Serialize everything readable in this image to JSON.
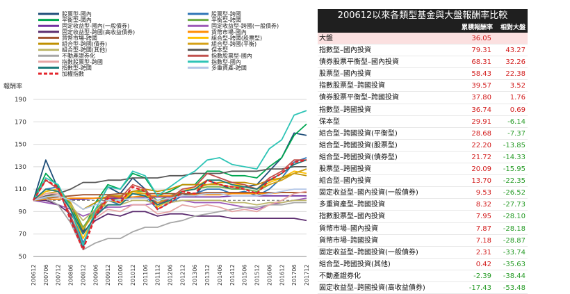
{
  "chart_data": {
    "type": "line",
    "ylabel": "報酬率",
    "ylim": [
      50,
      190
    ],
    "yticks": [
      50,
      70,
      90,
      110,
      130,
      150,
      170,
      190
    ],
    "x_ticks": [
      "200612",
      "200706",
      "200712",
      "200806",
      "200812",
      "200906",
      "200912",
      "201006",
      "201012",
      "201106",
      "201112",
      "201206",
      "201212",
      "201306",
      "201312",
      "201406",
      "201412",
      "201506",
      "201512",
      "201606",
      "201612",
      "201706",
      "201712"
    ],
    "reference_line": 100,
    "legend": [
      {
        "name": "股票型-國內",
        "color": "#1f4e79"
      },
      {
        "name": "股票型-跨國",
        "color": "#2e75b6"
      },
      {
        "name": "平衡型-國內",
        "color": "#00a651"
      },
      {
        "name": "平衡型-跨國",
        "color": "#70ad47"
      },
      {
        "name": "固定收益型-國內(一般債券)",
        "color": "#7030a0"
      },
      {
        "name": "固定收益型-跨國(一般債券)",
        "color": "#9b59b6"
      },
      {
        "name": "固定收益型-跨國(高收益債券)",
        "color": "#5b2c6f"
      },
      {
        "name": "貨幣市場-國內",
        "color": "#ff8c00"
      },
      {
        "name": "貨幣市場-跨國",
        "color": "#a0522d"
      },
      {
        "name": "組合型-跨國(股票型)",
        "color": "#ffc000"
      },
      {
        "name": "組合型-跨國(債券)",
        "color": "#bf9000"
      },
      {
        "name": "組合型-跨國(平衡)",
        "color": "#d4a017"
      },
      {
        "name": "組合型-跨國(其他)",
        "color": "#bdb76b"
      },
      {
        "name": "保本型",
        "color": "#595959"
      },
      {
        "name": "不動產證券化",
        "color": "#a6a6a6"
      },
      {
        "name": "指數股票型-國內",
        "color": "#c0504d"
      },
      {
        "name": "指數股票型-跨國",
        "color": "#e6a5a5"
      },
      {
        "name": "指數型-國內",
        "color": "#2ec4b6"
      },
      {
        "name": "指數型-跨國",
        "color": "#1b7a7a"
      },
      {
        "name": "多重資產-跨國",
        "color": "#b4c7e7"
      },
      {
        "name": "加權指數",
        "color": "#e3242b",
        "dashed": true
      }
    ],
    "series": [
      {
        "name": "股票型-國內",
        "color": "#1f4e79",
        "values": [
          100,
          136,
          110,
          84,
          58,
          92,
          112,
          106,
          120,
          110,
          94,
          102,
          106,
          104,
          118,
          114,
          110,
          112,
          114,
          126,
          138,
          160,
          158
        ]
      },
      {
        "name": "股票型-跨國",
        "color": "#2e75b6",
        "values": [
          100,
          110,
          112,
          96,
          62,
          86,
          100,
          96,
          106,
          104,
          92,
          98,
          104,
          106,
          110,
          110,
          106,
          108,
          104,
          110,
          120,
          134,
          138
        ]
      },
      {
        "name": "平衡型-國內",
        "color": "#00a651",
        "values": [
          100,
          124,
          112,
          96,
          72,
          98,
          114,
          110,
          124,
          120,
          104,
          108,
          114,
          114,
          126,
          126,
          122,
          122,
          120,
          130,
          138,
          158,
          168
        ]
      },
      {
        "name": "平衡型-跨國",
        "color": "#70ad47",
        "values": [
          100,
          108,
          110,
          98,
          76,
          92,
          102,
          100,
          108,
          108,
          100,
          104,
          108,
          110,
          112,
          112,
          110,
          110,
          108,
          114,
          118,
          124,
          128
        ]
      },
      {
        "name": "固定收益型-國內(一般債券)",
        "color": "#7030a0",
        "values": [
          100,
          101,
          101,
          101,
          101,
          102,
          102,
          102,
          102,
          103,
          103,
          103,
          103,
          103,
          103,
          103,
          104,
          104,
          104,
          104,
          104,
          104,
          104
        ]
      },
      {
        "name": "固定收益型-跨國(一般債券)",
        "color": "#9b59b6",
        "values": [
          100,
          98,
          96,
          92,
          86,
          90,
          94,
          94,
          96,
          96,
          98,
          98,
          100,
          98,
          98,
          98,
          96,
          94,
          92,
          96,
          98,
          100,
          102
        ]
      },
      {
        "name": "固定收益型-跨國(高收益債券)",
        "color": "#5b2c6f",
        "values": [
          100,
          100,
          96,
          88,
          72,
          82,
          88,
          86,
          90,
          90,
          86,
          88,
          88,
          86,
          86,
          86,
          84,
          84,
          84,
          84,
          84,
          84,
          82
        ]
      },
      {
        "name": "貨幣市場-國內",
        "color": "#ff8c00",
        "values": [
          100,
          101,
          101,
          102,
          102,
          102,
          103,
          103,
          103,
          104,
          104,
          104,
          104,
          105,
          105,
          105,
          106,
          106,
          106,
          106,
          107,
          107,
          107
        ]
      },
      {
        "name": "貨幣市場-跨國",
        "color": "#a0522d",
        "values": [
          100,
          102,
          103,
          104,
          105,
          105,
          105,
          106,
          106,
          106,
          106,
          106,
          106,
          106,
          107,
          107,
          107,
          107,
          107,
          107,
          107,
          107,
          107
        ]
      },
      {
        "name": "組合型-跨國(股票型)",
        "color": "#ffc000",
        "values": [
          100,
          108,
          110,
          94,
          66,
          88,
          100,
          98,
          108,
          106,
          94,
          100,
          108,
          112,
          118,
          118,
          114,
          114,
          110,
          116,
          120,
          126,
          124
        ]
      },
      {
        "name": "組合型-跨國(債券)",
        "color": "#bf9000",
        "values": [
          100,
          102,
          104,
          100,
          92,
          98,
          104,
          104,
          108,
          110,
          108,
          110,
          114,
          114,
          114,
          116,
          116,
          116,
          114,
          118,
          120,
          124,
          122
        ]
      },
      {
        "name": "組合型-跨國(平衡)",
        "color": "#d4a017",
        "values": [
          100,
          106,
          108,
          98,
          74,
          90,
          100,
          98,
          106,
          106,
          98,
          102,
          108,
          110,
          114,
          114,
          112,
          112,
          110,
          114,
          118,
          124,
          128
        ]
      },
      {
        "name": "組合型-跨國(其他)",
        "color": "#bdb76b",
        "values": [
          100,
          104,
          104,
          96,
          82,
          92,
          96,
          96,
          100,
          100,
          96,
          98,
          100,
          100,
          100,
          100,
          98,
          98,
          96,
          98,
          98,
          100,
          100
        ]
      },
      {
        "name": "保本型",
        "color": "#595959",
        "values": [
          100,
          104,
          106,
          110,
          116,
          116,
          118,
          118,
          120,
          120,
          120,
          122,
          122,
          124,
          124,
          124,
          126,
          126,
          126,
          128,
          128,
          130,
          130
        ]
      },
      {
        "name": "不動產證券化",
        "color": "#a6a6a6",
        "values": [
          100,
          102,
          96,
          80,
          56,
          62,
          66,
          66,
          72,
          76,
          76,
          80,
          82,
          86,
          88,
          90,
          92,
          94,
          94,
          96,
          96,
          98,
          98
        ]
      },
      {
        "name": "指數股票型-國內",
        "color": "#c0504d",
        "values": [
          100,
          118,
          110,
          86,
          60,
          88,
          104,
          102,
          114,
          110,
          96,
          102,
          110,
          112,
          124,
          120,
          116,
          114,
          110,
          120,
          126,
          136,
          136
        ]
      },
      {
        "name": "指數股票型-跨國",
        "color": "#e6a5a5",
        "values": [
          100,
          106,
          106,
          92,
          70,
          84,
          92,
          90,
          96,
          96,
          88,
          90,
          96,
          94,
          96,
          94,
          90,
          92,
          90,
          96,
          100,
          106,
          108
        ]
      },
      {
        "name": "指數型-國內",
        "color": "#2ec4b6",
        "values": [
          100,
          120,
          114,
          92,
          60,
          92,
          112,
          110,
          126,
          122,
          104,
          112,
          120,
          126,
          136,
          138,
          132,
          130,
          128,
          146,
          154,
          176,
          180
        ]
      },
      {
        "name": "指數型-跨國",
        "color": "#1b7a7a",
        "values": [
          100,
          110,
          108,
          92,
          70,
          86,
          96,
          96,
          106,
          104,
          96,
          100,
          108,
          110,
          118,
          118,
          114,
          112,
          110,
          118,
          124,
          132,
          136
        ]
      },
      {
        "name": "多重資產-跨國",
        "color": "#b4c7e7",
        "values": [
          100,
          103,
          104,
          100,
          92,
          96,
          100,
          100,
          102,
          102,
          100,
          102,
          104,
          104,
          106,
          106,
          104,
          104,
          104,
          106,
          108,
          110,
          110
        ]
      },
      {
        "name": "加權指數",
        "color": "#e3242b",
        "dashed": true,
        "values": [
          100,
          118,
          112,
          82,
          56,
          86,
          102,
          98,
          112,
          108,
          92,
          98,
          108,
          106,
          118,
          114,
          112,
          110,
          106,
          118,
          124,
          134,
          136
        ]
      }
    ]
  },
  "table": {
    "title": "200612以來各類型基金與大盤報酬率比較",
    "col_cum": "累積報酬率",
    "col_rel": "相對大盤",
    "rows": [
      {
        "name": "大盤",
        "cum": "36.05",
        "rel": "",
        "shade": true
      },
      {
        "name": "指數型–國內投資",
        "cum": "79.31",
        "rel": "43.27"
      },
      {
        "name": "債券股票平衡型–國內投資",
        "cum": "68.31",
        "rel": "32.26"
      },
      {
        "name": "股票型–國內投資",
        "cum": "58.43",
        "rel": "22.38"
      },
      {
        "name": "指數股票型–跨國投資",
        "cum": "39.57",
        "rel": "3.52"
      },
      {
        "name": "債券股票平衡型–跨國投資",
        "cum": "37.80",
        "rel": "1.76"
      },
      {
        "name": "指數型–跨國投資",
        "cum": "36.74",
        "rel": "0.69"
      },
      {
        "name": "保本型",
        "cum": "29.91",
        "rel": "-6.14"
      },
      {
        "name": "組合型–跨國投資(平衡型)",
        "cum": "28.68",
        "rel": "-7.37"
      },
      {
        "name": "組合型–跨國投資(股票型)",
        "cum": "22.20",
        "rel": "-13.85"
      },
      {
        "name": "組合型–跨國投資(債券型)",
        "cum": "21.72",
        "rel": "-14.33"
      },
      {
        "name": "股票型–跨國投資",
        "cum": "20.09",
        "rel": "-15.95"
      },
      {
        "name": "組合型–國內投資",
        "cum": "13.70",
        "rel": "-22.35"
      },
      {
        "name": "固定收益型–國內投資(一般債券)",
        "cum": "9.53",
        "rel": "-26.52"
      },
      {
        "name": "多重資產型–跨國投資",
        "cum": "8.32",
        "rel": "-27.73"
      },
      {
        "name": "指數股票型–國內投資",
        "cum": "7.95",
        "rel": "-28.10"
      },
      {
        "name": "貨幣市場–國內投資",
        "cum": "7.87",
        "rel": "-28.18"
      },
      {
        "name": "貨幣市場–跨國投資",
        "cum": "7.18",
        "rel": "-28.87"
      },
      {
        "name": "固定收益型–跨國投資(一般債券)",
        "cum": "2.31",
        "rel": "-33.74"
      },
      {
        "name": "組合型–跨國投資(其他)",
        "cum": "0.42",
        "rel": "-35.63"
      },
      {
        "name": "不動產證券化",
        "cum": "-2.39",
        "rel": "-38.44"
      },
      {
        "name": "固定收益型–跨國投資(高收益債券)",
        "cum": "-17.43",
        "rel": "-53.48"
      }
    ]
  }
}
